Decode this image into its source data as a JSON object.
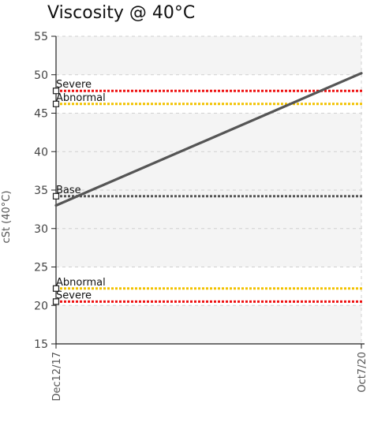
{
  "chart_data": {
    "type": "line",
    "title": "Viscosity @ 40°C",
    "ylabel": "cSt (40°C)",
    "xlabel": "",
    "ylim": [
      15,
      55
    ],
    "yticks": [
      15,
      20,
      25,
      30,
      35,
      40,
      45,
      50,
      55
    ],
    "x": [
      "Dec12/17",
      "Oct7/20"
    ],
    "grid": true,
    "series": [
      {
        "values": [
          33,
          50.2
        ],
        "color": "#555555"
      }
    ],
    "reference_lines": [
      {
        "label": "Severe",
        "value": 47.9,
        "color": "#ee1111"
      },
      {
        "label": "Abnormal",
        "value": 46.2,
        "color": "#f2c200"
      },
      {
        "label": "Base",
        "value": 34.2,
        "color": "#555555"
      },
      {
        "label": "Abnormal",
        "value": 22.2,
        "color": "#f2c200"
      },
      {
        "label": "Severe",
        "value": 20.5,
        "color": "#ee1111"
      }
    ],
    "bands": [
      {
        "from": 50,
        "to": 55,
        "color": "#f4f4f4"
      },
      {
        "from": 25,
        "to": 45,
        "color": "#f4f4f4"
      },
      {
        "from": 15,
        "to": 20,
        "color": "#f4f4f4"
      }
    ]
  }
}
